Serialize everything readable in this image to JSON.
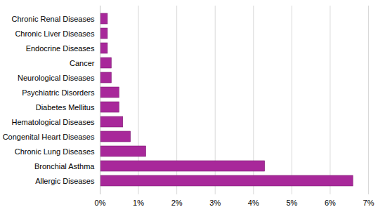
{
  "chart_data": {
    "type": "bar",
    "orientation": "horizontal",
    "categories": [
      "Chronic Renal Diseases",
      "Chronic Liver Diseases",
      "Endocrine Diseases",
      "Cancer",
      "Neurological Diseases",
      "Psychiatric Disorders",
      "Diabetes Mellitus",
      "Hematological Diseases",
      "Congenital Heart Diseases",
      "Chronic Lung Diseases",
      "Bronchial Asthma",
      "Allergic Diseases"
    ],
    "values": [
      0.2,
      0.2,
      0.2,
      0.3,
      0.3,
      0.5,
      0.5,
      0.6,
      0.8,
      1.2,
      4.3,
      6.6
    ],
    "color": "#a8289a",
    "xlim": [
      0,
      7
    ],
    "xticks": [
      {
        "value": 0,
        "label": "0%"
      },
      {
        "value": 1,
        "label": "1%"
      },
      {
        "value": 2,
        "label": "2%"
      },
      {
        "value": 3,
        "label": "3%"
      },
      {
        "value": 4,
        "label": "4%"
      },
      {
        "value": 5,
        "label": "5%"
      },
      {
        "value": 6,
        "label": "6%"
      },
      {
        "value": 7,
        "label": "7%"
      }
    ],
    "grid": true
  }
}
